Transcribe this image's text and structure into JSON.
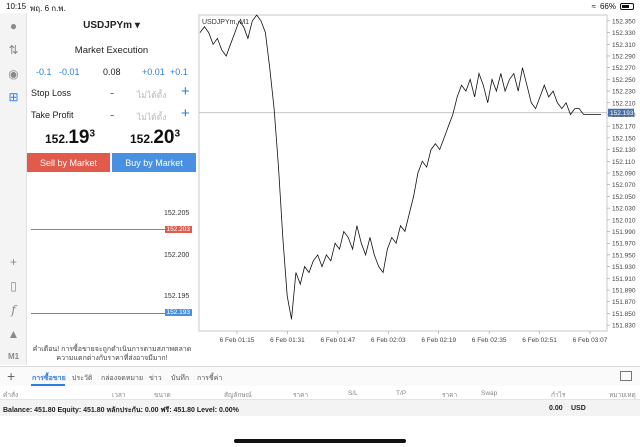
{
  "status": {
    "time": "10:15",
    "date": "พฤ. 6 ก.พ.",
    "battery": "66%",
    "battery_level": 0.66
  },
  "order": {
    "symbol": "USDJPYm",
    "execution": "Market Execution",
    "steps": [
      "-0.1",
      "-0.01",
      "0.08",
      "+0.01",
      "+0.1"
    ],
    "stop_loss": {
      "label": "Stop Loss",
      "minus": "-",
      "placeholder": "ไม่ได้ตั้ง",
      "plus": "+"
    },
    "take_profit": {
      "label": "Take Profit",
      "minus": "-",
      "placeholder": "ไม่ได้ตั้ง",
      "plus": "+"
    },
    "bid": {
      "small": "152.",
      "big": "19",
      "sup": "3"
    },
    "ask": {
      "small": "152.",
      "big": "20",
      "sup": "3"
    },
    "sell_label": "Sell by Market",
    "buy_label": "Buy by Market"
  },
  "depth": {
    "levels": [
      "152.205",
      "152.200",
      "152.195"
    ],
    "ask_tag": "152.203",
    "bid_tag": "152.193"
  },
  "warning": "คำเตือน! การซื้อขายจะถูกดำเนินการตามสภาพตลาด ความแตกต่างกับราคาที่ส่งอาจมีมาก!",
  "chart_label": "USDJPYm, M1",
  "chart_data": {
    "type": "line",
    "title": "USDJPYm, M1",
    "x_labels": [
      "6 Feb 01:15",
      "6 Feb 01:31",
      "6 Feb 01:47",
      "6 Feb 02:03",
      "6 Feb 02:19",
      "6 Feb 02:35",
      "6 Feb 02:51",
      "6 Feb 03:07"
    ],
    "y_ticks": [
      "152.350",
      "152.330",
      "152.310",
      "152.290",
      "152.270",
      "152.250",
      "152.230",
      "152.210",
      "152.190",
      "152.170",
      "152.150",
      "152.130",
      "152.110",
      "152.090",
      "152.070",
      "152.050",
      "152.030",
      "152.010",
      "151.990",
      "151.970",
      "151.950",
      "151.930",
      "151.910",
      "151.890",
      "151.870",
      "151.850",
      "151.830"
    ],
    "ylim": [
      151.82,
      152.36
    ],
    "current_price": 152.193,
    "current_price_label": "152.193",
    "series": [
      {
        "values": [
          152.33,
          152.34,
          152.33,
          152.31,
          152.32,
          152.3,
          152.29,
          152.31,
          152.33,
          152.35,
          152.34,
          152.32,
          152.35,
          152.36,
          152.35,
          152.33,
          152.27,
          152.2,
          152.1,
          151.98,
          151.88,
          151.84,
          151.92,
          151.9,
          151.93,
          151.92,
          151.94,
          151.95,
          151.93,
          151.95,
          151.94,
          151.97,
          151.96,
          151.99,
          151.98,
          151.96,
          152.0,
          151.97,
          151.95,
          151.98,
          151.95,
          151.93,
          151.92,
          151.96,
          151.98,
          151.97,
          152.0,
          151.99,
          152.02,
          152.05,
          152.09,
          152.11,
          152.1,
          152.13,
          152.14,
          152.13,
          152.15,
          152.17,
          152.19,
          152.22,
          152.24,
          152.23,
          152.25,
          152.22,
          152.26,
          152.24,
          152.21,
          152.25,
          152.23,
          152.26,
          152.23,
          152.25,
          152.26,
          152.23,
          152.27,
          152.24,
          152.21,
          152.2,
          152.22,
          152.24,
          152.22,
          152.23,
          152.21,
          152.2,
          152.21,
          152.19,
          152.2,
          152.2,
          152.19,
          152.19,
          152.19,
          152.19,
          152.19
        ]
      }
    ]
  }
}
